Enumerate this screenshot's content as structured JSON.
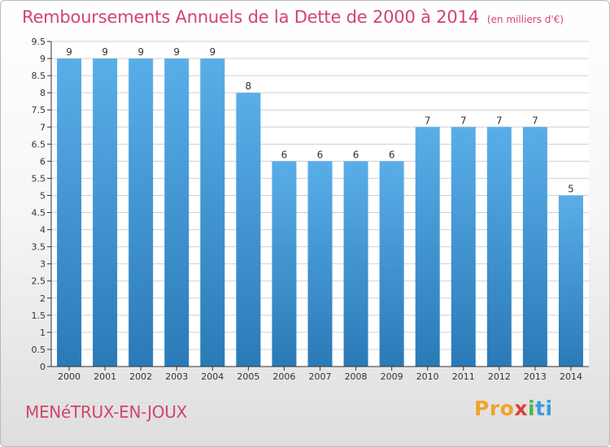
{
  "header": {
    "title": "Remboursements Annuels de la Dette de 2000 à 2014",
    "unit": "(en milliers d'€)"
  },
  "footer": {
    "commune": "MENéTRUX-EN-JOUX",
    "logo_parts": [
      "Pro",
      "x",
      "i",
      "ti"
    ],
    "logo_icon": "proxiti-logo"
  },
  "colors": {
    "title": "#d2456b",
    "bar_top": "#5aaee8",
    "bar_bottom": "#2a7ab8",
    "grid": "#d0d0d0",
    "axis": "#333333"
  },
  "chart_data": {
    "type": "bar",
    "title": "Remboursements Annuels de la Dette de 2000 à 2014",
    "subtitle": "(en milliers d'€)",
    "categories": [
      "2000",
      "2001",
      "2002",
      "2003",
      "2004",
      "2005",
      "2006",
      "2007",
      "2008",
      "2009",
      "2010",
      "2011",
      "2012",
      "2013",
      "2014"
    ],
    "values": [
      9,
      9,
      9,
      9,
      9,
      8,
      6,
      6,
      6,
      6,
      7,
      7,
      7,
      7,
      5
    ],
    "data_labels": [
      "9",
      "9",
      "9",
      "9",
      "9",
      "8",
      "6",
      "6",
      "6",
      "6",
      "7",
      "7",
      "7",
      "7",
      "5"
    ],
    "yticks": [
      "0",
      "0.5",
      "1",
      "1.5",
      "2",
      "2.5",
      "3",
      "3.5",
      "4",
      "4.5",
      "5",
      "5.5",
      "6",
      "6.5",
      "7",
      "7.5",
      "8",
      "8.5",
      "9",
      "9.5"
    ],
    "ylim": [
      0,
      9.5
    ],
    "grid": true,
    "legend": "none"
  }
}
